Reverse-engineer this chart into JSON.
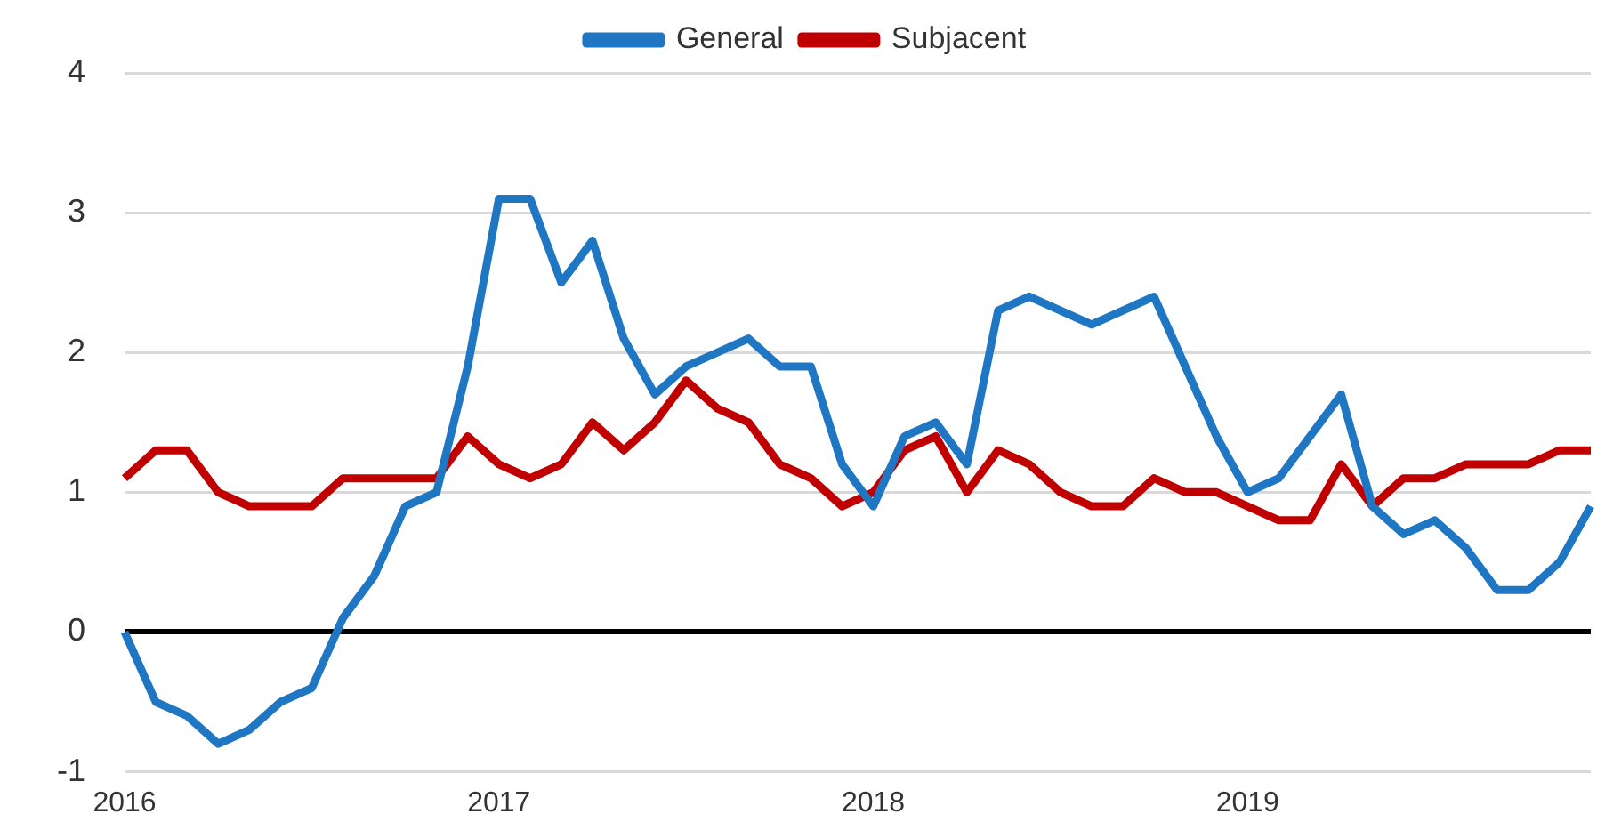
{
  "chart_data": {
    "type": "line",
    "categories": [
      "2016",
      null,
      null,
      null,
      null,
      null,
      null,
      null,
      null,
      null,
      null,
      null,
      "2017",
      null,
      null,
      null,
      null,
      null,
      null,
      null,
      null,
      null,
      null,
      null,
      "2018",
      null,
      null,
      null,
      null,
      null,
      null,
      null,
      null,
      null,
      null,
      null,
      "2019",
      null,
      null,
      null,
      null,
      null,
      null,
      null,
      null,
      null,
      null,
      null
    ],
    "series": [
      {
        "name": "General",
        "color": "#1f77c4",
        "values": [
          0,
          -0.5,
          -0.6,
          -0.8,
          -0.7,
          -0.5,
          -0.4,
          0.1,
          0.4,
          0.9,
          1.0,
          1.9,
          3.1,
          3.1,
          2.5,
          2.8,
          2.1,
          1.7,
          1.9,
          2.0,
          2.1,
          1.9,
          1.9,
          1.2,
          0.9,
          1.4,
          1.5,
          1.2,
          2.3,
          2.4,
          2.3,
          2.2,
          2.3,
          2.4,
          1.9,
          1.4,
          1.0,
          1.1,
          1.4,
          1.7,
          0.9,
          0.7,
          0.8,
          0.6,
          0.3,
          0.3,
          0.5,
          0.9
        ]
      },
      {
        "name": "Subjacent",
        "color": "#c00000",
        "values": [
          1.1,
          1.3,
          1.3,
          1.0,
          0.9,
          0.9,
          0.9,
          1.1,
          1.1,
          1.1,
          1.1,
          1.4,
          1.2,
          1.1,
          1.2,
          1.5,
          1.3,
          1.5,
          1.8,
          1.6,
          1.5,
          1.2,
          1.1,
          0.9,
          1.0,
          1.3,
          1.4,
          1.0,
          1.3,
          1.2,
          1.0,
          0.9,
          0.9,
          1.1,
          1.0,
          1.0,
          0.9,
          0.8,
          0.8,
          1.2,
          0.9,
          1.1,
          1.1,
          1.2,
          1.2,
          1.2,
          1.3,
          1.3
        ]
      }
    ],
    "ylim": [
      -1,
      4
    ],
    "yticks": [
      -1,
      0,
      1,
      2,
      3,
      4
    ],
    "grid": "y",
    "legend": "top",
    "marker": "none",
    "line_style": "solid"
  }
}
